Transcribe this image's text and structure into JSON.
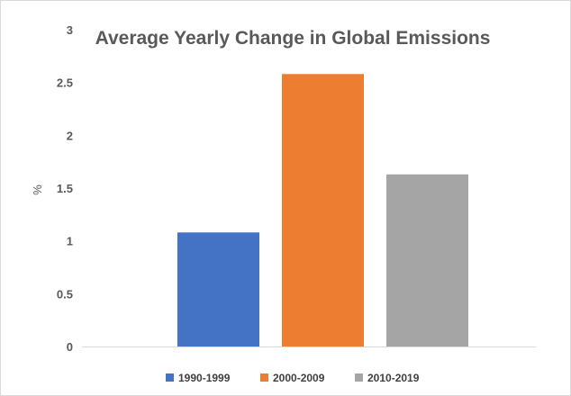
{
  "chart_data": {
    "type": "bar",
    "title": "Average Yearly Change in Global Emissions",
    "xlabel": "",
    "ylabel": "%",
    "categories": [
      "1990-1999",
      "2000-2009",
      "2010-2019"
    ],
    "values": [
      1.08,
      2.58,
      1.63
    ],
    "colors": [
      "#4472c4",
      "#ed7d31",
      "#a5a5a5"
    ],
    "ylim": [
      0,
      3
    ],
    "yticks": [
      "0",
      "0.5",
      "1",
      "1.5",
      "2",
      "2.5",
      "3"
    ],
    "grid": false,
    "legend": "bottom"
  }
}
